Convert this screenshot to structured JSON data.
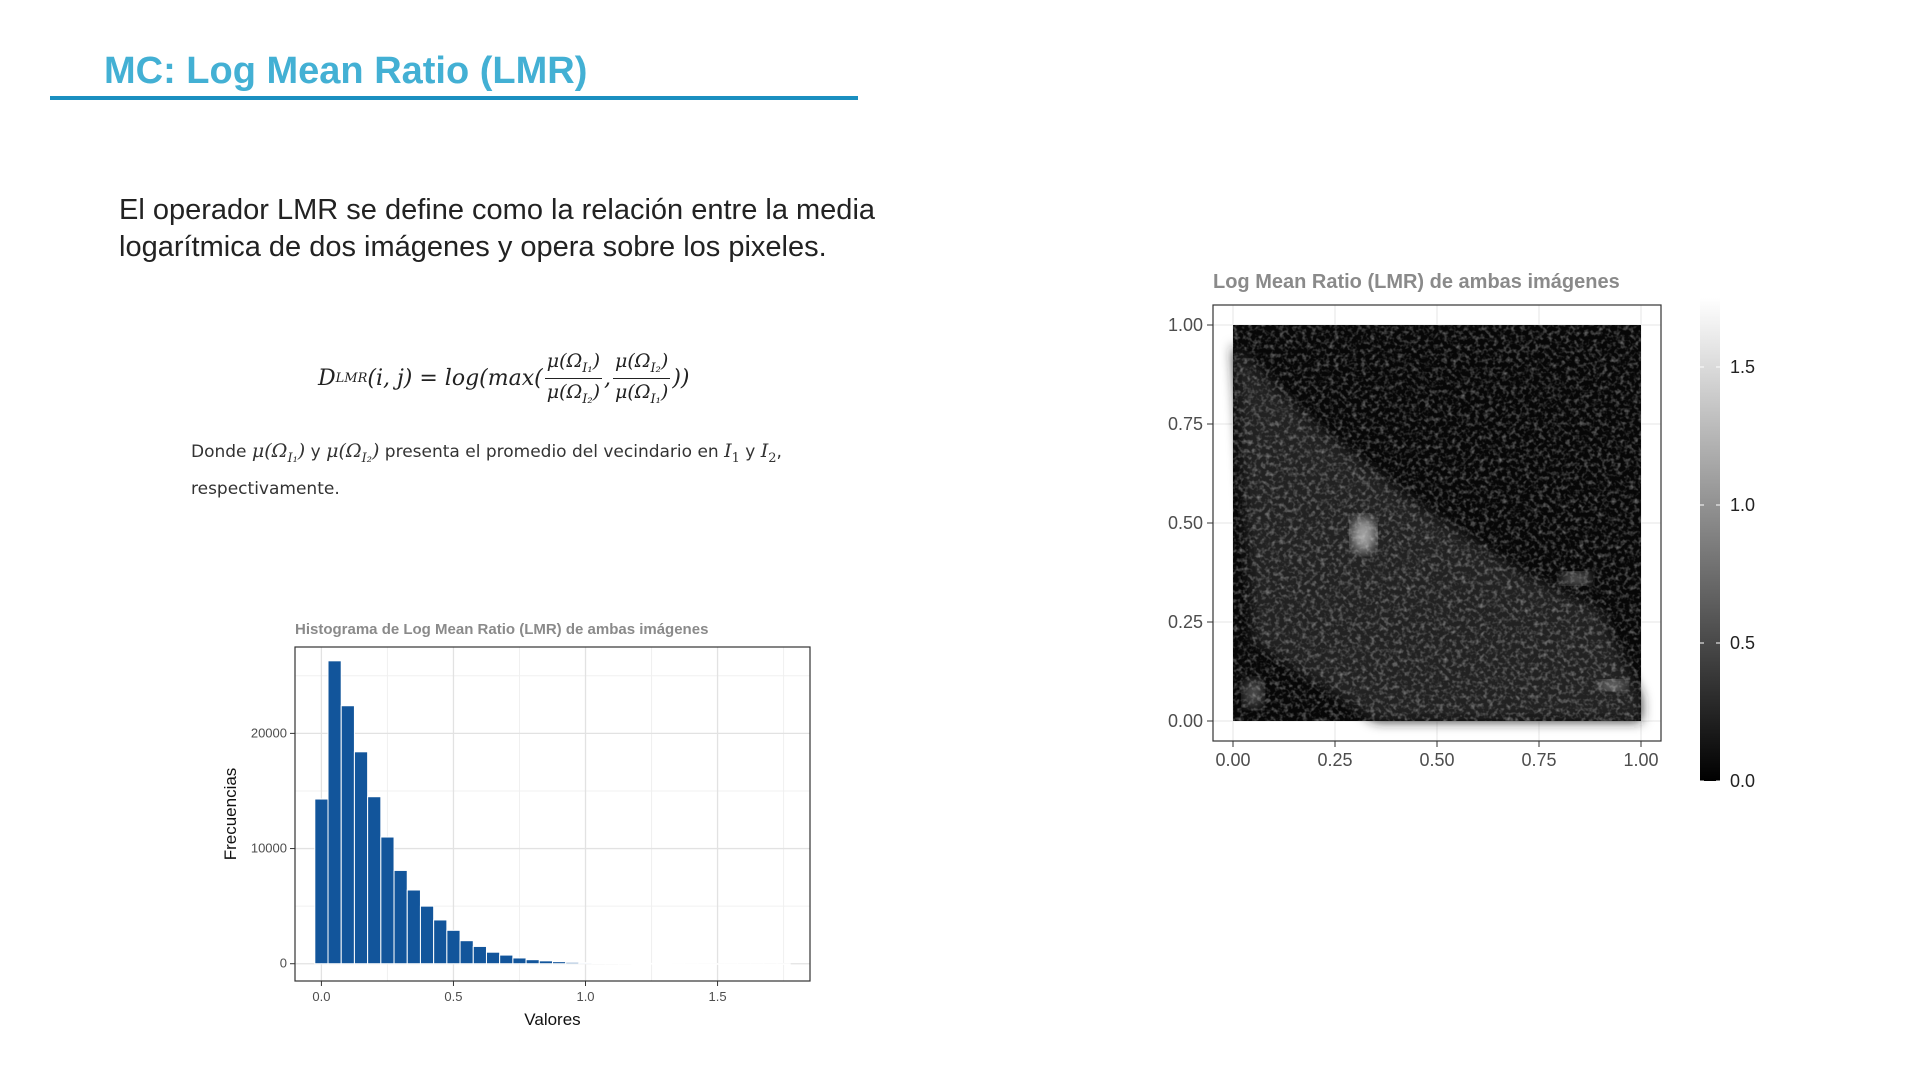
{
  "slide": {
    "title": "MC: Log Mean Ratio (LMR)",
    "intro": "El operador LMR se define como la relación entre la media logarítmica de dos imágenes y opera sobre los pixeles.",
    "formula": {
      "lhs": "D",
      "lhs_sub": "LMR",
      "args": "(i, j) = log(max(",
      "f1_num": "μ(Ω",
      "f1_num_sub": "I₁",
      "f1_num_close": ")",
      "f1_den": "μ(Ω",
      "f1_den_sub": "I₂",
      "f1_den_close": ")",
      "comma": ",",
      "f2_num": "μ(Ω",
      "f2_num_sub": "I₂",
      "f2_num_close": ")",
      "f2_den": "μ(Ω",
      "f2_den_sub": "I₁",
      "f2_den_close": ")",
      "close": "))"
    },
    "note": {
      "t1": "Donde",
      "m1": "μ(Ω",
      "m1_sub": "I₁",
      "m1_close": ")",
      "t2": "y",
      "m2": "μ(Ω",
      "m2_sub": "I₂",
      "m2_close": ")",
      "t3": "presenta el promedio del vecindario en",
      "i1": "I",
      "i1_sub": "1",
      "t4": "y",
      "i2": "I",
      "i2_sub": "2",
      "t5": ", respectivamente."
    }
  },
  "chart_data": [
    {
      "type": "bar",
      "title": "Histograma de Log Mean Ratio (LMR) de ambas imágenes",
      "xlabel": "Valores",
      "ylabel": "Frecuencias",
      "xlim": [
        -0.1,
        1.85
      ],
      "ylim": [
        -1500,
        27500
      ],
      "xticks": [
        0.0,
        0.5,
        1.0,
        1.5
      ],
      "xtick_labels": [
        "0.0",
        "0.5",
        "1.0",
        "1.5"
      ],
      "yticks": [
        0,
        10000,
        20000
      ],
      "ytick_labels": [
        "0",
        "10000",
        "20000"
      ],
      "bin_width": 0.05,
      "bin_starts": [
        -0.025,
        0.025,
        0.075,
        0.125,
        0.175,
        0.225,
        0.275,
        0.325,
        0.375,
        0.425,
        0.475,
        0.525,
        0.575,
        0.625,
        0.675,
        0.725,
        0.775,
        0.825,
        0.875,
        0.925,
        0.975,
        1.025,
        1.075,
        1.125,
        1.175,
        1.225,
        1.275,
        1.325,
        1.375,
        1.425,
        1.475,
        1.525,
        1.575,
        1.625,
        1.675,
        1.725
      ],
      "values": [
        14300,
        26300,
        22400,
        18400,
        14500,
        11000,
        8100,
        6400,
        5000,
        3800,
        2900,
        2000,
        1500,
        1000,
        750,
        500,
        350,
        250,
        180,
        120,
        90,
        70,
        50,
        40,
        30,
        25,
        20,
        15,
        10,
        8,
        6,
        5,
        4,
        3,
        2,
        1
      ],
      "grid": true,
      "bar_color": "#12559b",
      "bar_edge": "#ffffff"
    },
    {
      "type": "heatmap",
      "title": "Log Mean Ratio (LMR) de ambas imágenes",
      "xlim": [
        0,
        1
      ],
      "ylim": [
        0,
        1
      ],
      "xticks": [
        0.0,
        0.25,
        0.5,
        0.75,
        1.0
      ],
      "xtick_labels": [
        "0.00",
        "0.25",
        "0.50",
        "0.75",
        "1.00"
      ],
      "yticks": [
        0.0,
        0.25,
        0.5,
        0.75,
        1.0
      ],
      "ytick_labels": [
        "0.00",
        "0.25",
        "0.50",
        "0.75",
        "1.00"
      ],
      "colorbar": {
        "range": [
          0.0,
          1.75
        ],
        "ticks": [
          0.0,
          0.5,
          1.0,
          1.5
        ],
        "tick_labels": [
          "0.0",
          "0.5",
          "1.0",
          "1.5"
        ],
        "low_color": "#000000",
        "high_color": "#ffffff"
      },
      "grid": true
    }
  ]
}
